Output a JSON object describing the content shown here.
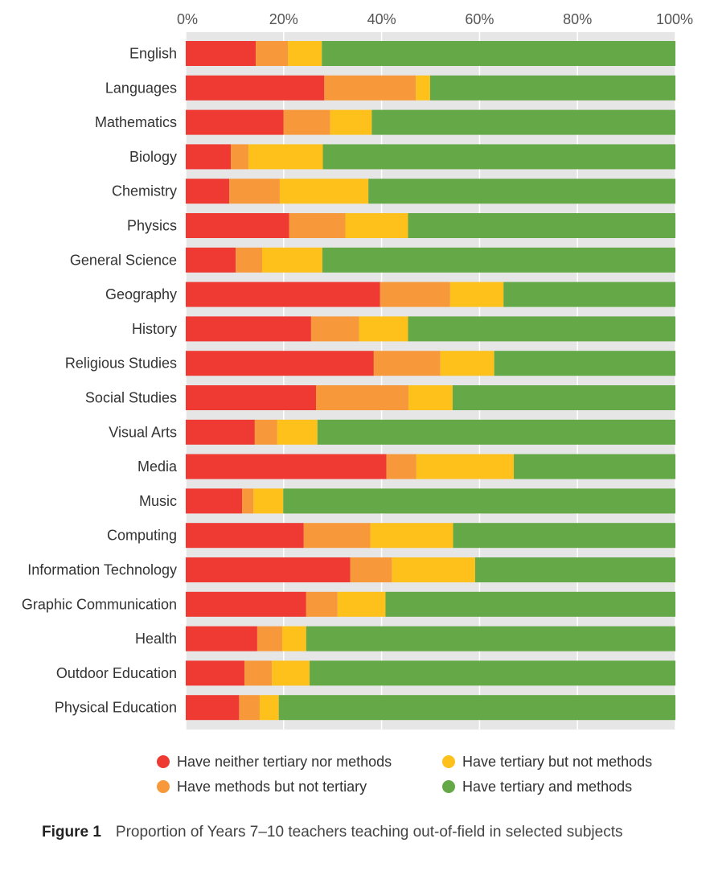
{
  "chart_data": {
    "type": "stacked-bar-horizontal",
    "x_ticks": [
      "0%",
      "20%",
      "40%",
      "60%",
      "80%",
      "100%"
    ],
    "xlim": [
      0,
      100
    ],
    "grid": true,
    "legend_position": "bottom",
    "categories": [
      "English",
      "Languages",
      "Mathematics",
      "Biology",
      "Chemistry",
      "Physics",
      "General Science",
      "Geography",
      "History",
      "Religious Studies",
      "Social Studies",
      "Visual Arts",
      "Media",
      "Music",
      "Computing",
      "Information Technology",
      "Graphic Communication",
      "Health",
      "Outdoor Education",
      "Physical Education"
    ],
    "series": [
      {
        "name": "Have neither tertiary nor methods",
        "color": "#ee3a32",
        "values": [
          14.3,
          28.3,
          20.0,
          9.2,
          8.9,
          21.1,
          10.2,
          39.7,
          25.6,
          38.4,
          26.6,
          14.1,
          41.0,
          11.5,
          24.1,
          33.6,
          24.6,
          14.6,
          12.0,
          10.9
        ]
      },
      {
        "name": "Have methods but not tertiary",
        "color": "#f7993a",
        "values": [
          6.6,
          18.7,
          9.5,
          3.6,
          10.3,
          11.5,
          5.4,
          14.3,
          9.8,
          13.6,
          18.9,
          4.6,
          6.1,
          2.3,
          13.6,
          8.5,
          6.4,
          5.1,
          5.6,
          4.2
        ]
      },
      {
        "name": "Have tertiary but not methods",
        "color": "#fec11b",
        "values": [
          6.9,
          2.9,
          8.5,
          15.2,
          18.1,
          12.8,
          12.3,
          10.9,
          10.0,
          11.0,
          9.0,
          8.2,
          19.9,
          6.1,
          16.9,
          17.0,
          9.8,
          4.9,
          7.7,
          3.9
        ]
      },
      {
        "name": "Have tertiary and methods",
        "color": "#64a847",
        "values": [
          72.2,
          50.1,
          62.0,
          72.0,
          62.7,
          54.6,
          72.1,
          35.1,
          54.6,
          37.0,
          45.5,
          73.1,
          33.0,
          80.1,
          45.4,
          40.9,
          59.2,
          75.4,
          74.7,
          81.0
        ]
      }
    ],
    "legend": [
      "Have neither tertiary nor methods",
      "Have tertiary but not methods",
      "Have methods but not tertiary",
      "Have tertiary and methods"
    ],
    "colors": {
      "plot_bg": "#e6e6e6",
      "grid": "#ffffff"
    }
  },
  "caption": {
    "label": "Figure 1",
    "text": "Proportion of Years 7–10 teachers teaching out-of-field in selected subjects"
  }
}
